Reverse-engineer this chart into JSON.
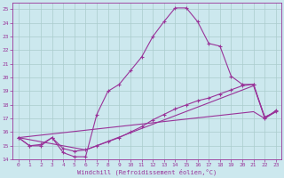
{
  "xlabel": "Windchill (Refroidissement éolien,°C)",
  "background_color": "#cce8ee",
  "grid_color": "#aacccc",
  "line_color": "#993399",
  "xlim": [
    -0.5,
    23.5
  ],
  "ylim": [
    14,
    25.5
  ],
  "xticks": [
    0,
    1,
    2,
    3,
    4,
    5,
    6,
    7,
    8,
    9,
    10,
    11,
    12,
    13,
    14,
    15,
    16,
    17,
    18,
    19,
    20,
    21,
    22,
    23
  ],
  "yticks": [
    14,
    15,
    16,
    17,
    18,
    19,
    20,
    21,
    22,
    23,
    24,
    25
  ],
  "line1_x": [
    0,
    1,
    2,
    3,
    4,
    5,
    6,
    7,
    8,
    9,
    10,
    11,
    12,
    13,
    14,
    15,
    16,
    17,
    18,
    19,
    20,
    21,
    22,
    23
  ],
  "line1_y": [
    15.6,
    15.0,
    15.0,
    15.6,
    14.5,
    14.2,
    14.2,
    17.3,
    19.0,
    19.5,
    20.5,
    21.5,
    23.0,
    24.1,
    25.1,
    25.1,
    24.1,
    22.5,
    22.3,
    20.1,
    19.5,
    19.5,
    17.0,
    17.6
  ],
  "line2_x": [
    0,
    1,
    2,
    3,
    4,
    5,
    6,
    7,
    8,
    9,
    10,
    11,
    12,
    13,
    14,
    15,
    16,
    17,
    18,
    19,
    20,
    21,
    22,
    23
  ],
  "line2_y": [
    15.6,
    15.0,
    15.1,
    15.6,
    14.8,
    14.6,
    14.7,
    15.0,
    15.3,
    15.6,
    16.0,
    16.4,
    16.9,
    17.3,
    17.7,
    18.0,
    18.3,
    18.5,
    18.8,
    19.1,
    19.4,
    19.5,
    17.1,
    17.5
  ],
  "line3_x": [
    0,
    6,
    21,
    22,
    23
  ],
  "line3_y": [
    15.6,
    14.7,
    19.4,
    17.1,
    17.5
  ],
  "line4_x": [
    0,
    21,
    22,
    23
  ],
  "line4_y": [
    15.6,
    17.5,
    17.0,
    17.5
  ]
}
